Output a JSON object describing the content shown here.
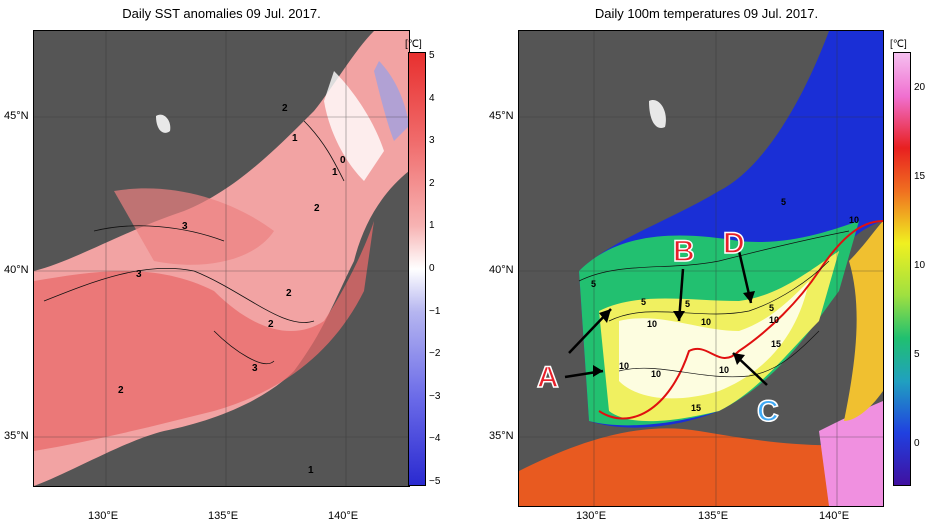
{
  "left_panel": {
    "title": "Daily SST anomalies 09 Jul. 2017.",
    "colorbar_unit": "[℃]",
    "colorbar_ticks": [
      "5",
      "4",
      "3",
      "2",
      "1",
      "0",
      "−1",
      "−2",
      "−3",
      "−4",
      "−5"
    ],
    "contour_labels": [
      "2",
      "1",
      "0",
      "1",
      "2",
      "3",
      "3",
      "2",
      "2",
      "3",
      "2",
      "1"
    ],
    "colors": {
      "land": "#555555",
      "ocean_base": "#f2a0a0",
      "neg": "#5555cc"
    }
  },
  "right_panel": {
    "title": "Daily 100m temperatures 09 Jul. 2017.",
    "colorbar_unit": "[℃]",
    "colorbar_ticks": [
      "20",
      "15",
      "10",
      "5",
      "0"
    ],
    "contour_labels": [
      "5",
      "10",
      "5",
      "5",
      "10",
      "5",
      "10",
      "10",
      "10",
      "15",
      "10",
      "15",
      "10",
      "5"
    ],
    "annotations": [
      {
        "text": "A",
        "color": "#e8202a"
      },
      {
        "text": "B",
        "color": "#e8202a"
      },
      {
        "text": "C",
        "color": "#3fa9f5"
      },
      {
        "text": "D",
        "color": "#e8202a"
      }
    ]
  },
  "axes": {
    "lat_labels": [
      "45°N",
      "40°N",
      "35°N"
    ],
    "lon_labels": [
      "130°E",
      "135°E",
      "140°E"
    ]
  }
}
